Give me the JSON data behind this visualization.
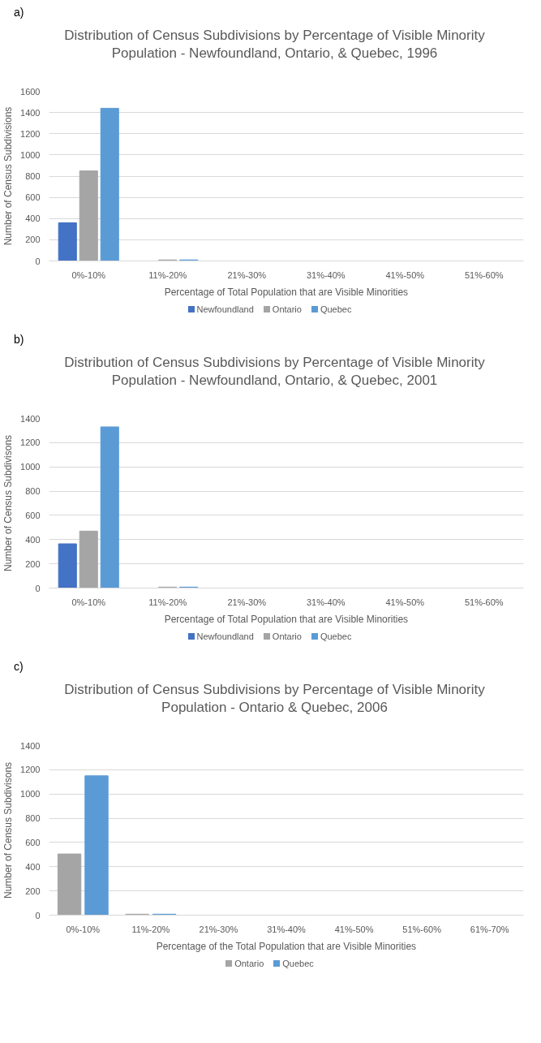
{
  "chart_data": [
    {
      "type": "bar",
      "annotations": [
        "a)"
      ],
      "title": "Distribution of Census Subdivisions by Percentage of Visible Minority Population - Newfoundland, Ontario, & Quebec, 1996",
      "xlabel": "Percentage of Total Population that are Visible Minorities",
      "ylabel": "Number of Census Subdivisions",
      "categories": [
        "0%-10%",
        "11%-20%",
        "21%-30%",
        "31%-40%",
        "41%-50%",
        "51%-60%"
      ],
      "ylim": [
        0,
        1600
      ],
      "yticks": [
        0,
        200,
        400,
        600,
        800,
        1000,
        1200,
        1400,
        1600
      ],
      "grid": "y",
      "legend": "bottom",
      "series": [
        {
          "name": "Newfoundland",
          "color": "#4472c4",
          "values": [
            360,
            0,
            0,
            0,
            0,
            0
          ]
        },
        {
          "name": "Ontario",
          "color": "#a5a5a5",
          "values": [
            850,
            10,
            0,
            0,
            0,
            0
          ]
        },
        {
          "name": "Quebec",
          "color": "#5b9bd5",
          "values": [
            1440,
            10,
            0,
            0,
            0,
            0
          ]
        }
      ]
    },
    {
      "type": "bar",
      "annotations": [
        "b)"
      ],
      "title": "Distribution of Census Subdivisions by Percentage of Visible Minority Population - Newfoundland, Ontario, & Quebec, 2001",
      "xlabel": "Percentage of Total Population that are Visible Minorities",
      "ylabel": "Number of Census Subdivisons",
      "categories": [
        "0%-10%",
        "11%-20%",
        "21%-30%",
        "31%-40%",
        "41%-50%",
        "51%-60%"
      ],
      "ylim": [
        0,
        1400
      ],
      "yticks": [
        0,
        200,
        400,
        600,
        800,
        1000,
        1200,
        1400
      ],
      "grid": "y",
      "legend": "bottom",
      "series": [
        {
          "name": "Newfoundland",
          "color": "#4472c4",
          "values": [
            365,
            0,
            0,
            0,
            0,
            0
          ]
        },
        {
          "name": "Ontario",
          "color": "#a5a5a5",
          "values": [
            470,
            8,
            0,
            0,
            0,
            0
          ]
        },
        {
          "name": "Quebec",
          "color": "#5b9bd5",
          "values": [
            1330,
            8,
            0,
            0,
            0,
            0
          ]
        }
      ]
    },
    {
      "type": "bar",
      "annotations": [
        "c)"
      ],
      "title": "Distribution of Census Subdivisions by Percentage of Visible Minority Population - Ontario & Quebec, 2006",
      "xlabel": "Percentage of the Total Population that are Visible Minorities",
      "ylabel": "Number of Census Subdivisons",
      "categories": [
        "0%-10%",
        "11%-20%",
        "21%-30%",
        "31%-40%",
        "41%-50%",
        "51%-60%",
        "61%-70%"
      ],
      "ylim": [
        0,
        1400
      ],
      "yticks": [
        0,
        200,
        400,
        600,
        800,
        1000,
        1200,
        1400
      ],
      "grid": "y",
      "legend": "bottom",
      "series": [
        {
          "name": "Ontario",
          "color": "#a5a5a5",
          "values": [
            505,
            8,
            0,
            0,
            0,
            0,
            0
          ]
        },
        {
          "name": "Quebec",
          "color": "#5b9bd5",
          "values": [
            1150,
            8,
            0,
            0,
            0,
            0,
            0
          ]
        }
      ]
    }
  ]
}
